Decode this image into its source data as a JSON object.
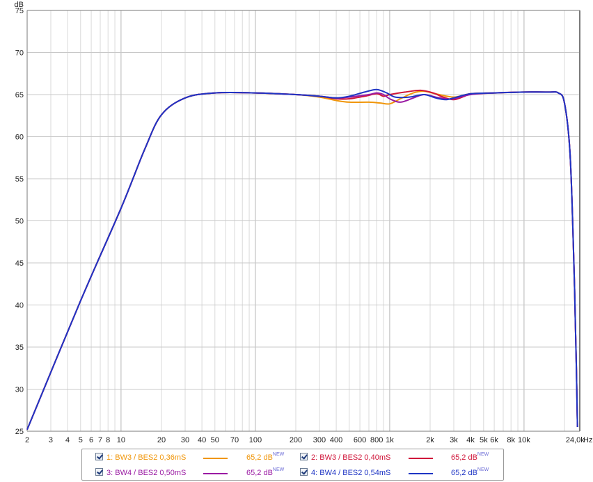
{
  "chart_data": {
    "type": "line",
    "y_unit": "dB",
    "x_unit": "Hz",
    "x_scale": "log",
    "xlim": [
      2,
      26000
    ],
    "ylim": [
      25,
      75
    ],
    "y_ticks": [
      25,
      30,
      35,
      40,
      45,
      50,
      55,
      60,
      65,
      70,
      75
    ],
    "x_ticks": [
      {
        "v": 2,
        "label": "2"
      },
      {
        "v": 3,
        "label": "3"
      },
      {
        "v": 4,
        "label": "4"
      },
      {
        "v": 5,
        "label": "5"
      },
      {
        "v": 6,
        "label": "6"
      },
      {
        "v": 7,
        "label": "7"
      },
      {
        "v": 8,
        "label": "8"
      },
      {
        "v": 10,
        "label": "10"
      },
      {
        "v": 20,
        "label": "20"
      },
      {
        "v": 30,
        "label": "30"
      },
      {
        "v": 40,
        "label": "40"
      },
      {
        "v": 50,
        "label": "50"
      },
      {
        "v": 70,
        "label": "70"
      },
      {
        "v": 100,
        "label": "100"
      },
      {
        "v": 200,
        "label": "200"
      },
      {
        "v": 300,
        "label": "300"
      },
      {
        "v": 400,
        "label": "400"
      },
      {
        "v": 600,
        "label": "600"
      },
      {
        "v": 800,
        "label": "800"
      },
      {
        "v": 1000,
        "label": "1k"
      },
      {
        "v": 2000,
        "label": "2k"
      },
      {
        "v": 3000,
        "label": "3k"
      },
      {
        "v": 4000,
        "label": "4k"
      },
      {
        "v": 5000,
        "label": "5k"
      },
      {
        "v": 6000,
        "label": "6k"
      },
      {
        "v": 8000,
        "label": "8k"
      },
      {
        "v": 10000,
        "label": "10k"
      },
      {
        "v": 24000,
        "label": "24,0k"
      }
    ],
    "grid": true,
    "legend_position": "bottom",
    "series": [
      {
        "name": "1: BW3 / BES2 0,36mS",
        "color": "#f0960a",
        "readout": "65,2 dB",
        "points": [
          [
            2,
            25.2
          ],
          [
            5,
            40.5
          ],
          [
            10,
            51.5
          ],
          [
            15,
            58.5
          ],
          [
            20,
            62.6
          ],
          [
            30,
            64.6
          ],
          [
            50,
            65.2
          ],
          [
            100,
            65.2
          ],
          [
            200,
            65.0
          ],
          [
            300,
            64.7
          ],
          [
            400,
            64.3
          ],
          [
            500,
            64.1
          ],
          [
            700,
            64.1
          ],
          [
            850,
            64.0
          ],
          [
            1000,
            63.9
          ],
          [
            1200,
            64.5
          ],
          [
            1500,
            65.2
          ],
          [
            1800,
            65.4
          ],
          [
            2200,
            65.1
          ],
          [
            3000,
            64.7
          ],
          [
            4000,
            65.1
          ],
          [
            6000,
            65.2
          ],
          [
            10000,
            65.3
          ],
          [
            15000,
            65.3
          ],
          [
            18000,
            65.2
          ],
          [
            20000,
            64.0
          ],
          [
            22000,
            58.0
          ],
          [
            23500,
            45.0
          ],
          [
            24500,
            33.0
          ],
          [
            25000,
            25.5
          ]
        ]
      },
      {
        "name": "2: BW3 / BES2 0,40mS",
        "color": "#d0163a",
        "readout": "65,2 dB",
        "points": [
          [
            2,
            25.2
          ],
          [
            5,
            40.5
          ],
          [
            10,
            51.5
          ],
          [
            15,
            58.5
          ],
          [
            20,
            62.6
          ],
          [
            30,
            64.6
          ],
          [
            50,
            65.2
          ],
          [
            100,
            65.2
          ],
          [
            200,
            65.0
          ],
          [
            300,
            64.8
          ],
          [
            400,
            64.5
          ],
          [
            500,
            64.5
          ],
          [
            650,
            64.8
          ],
          [
            800,
            65.1
          ],
          [
            900,
            64.8
          ],
          [
            1000,
            65.0
          ],
          [
            1300,
            65.3
          ],
          [
            1700,
            65.5
          ],
          [
            2100,
            65.2
          ],
          [
            2500,
            64.7
          ],
          [
            3000,
            64.4
          ],
          [
            3600,
            64.8
          ],
          [
            4000,
            65.1
          ],
          [
            6000,
            65.2
          ],
          [
            10000,
            65.3
          ],
          [
            15000,
            65.3
          ],
          [
            18000,
            65.2
          ],
          [
            20000,
            64.0
          ],
          [
            22000,
            58.0
          ],
          [
            23500,
            45.0
          ],
          [
            24500,
            33.0
          ],
          [
            25000,
            25.5
          ]
        ]
      },
      {
        "name": "3: BW4 / BES2 0,50mS",
        "color": "#9a1aa3",
        "readout": "65,2 dB",
        "points": [
          [
            2,
            25.2
          ],
          [
            5,
            40.5
          ],
          [
            10,
            51.5
          ],
          [
            15,
            58.5
          ],
          [
            20,
            62.6
          ],
          [
            30,
            64.6
          ],
          [
            50,
            65.2
          ],
          [
            100,
            65.2
          ],
          [
            200,
            65.0
          ],
          [
            300,
            64.8
          ],
          [
            400,
            64.6
          ],
          [
            500,
            64.7
          ],
          [
            700,
            65.0
          ],
          [
            800,
            65.2
          ],
          [
            900,
            65.0
          ],
          [
            1000,
            64.5
          ],
          [
            1200,
            64.1
          ],
          [
            1500,
            64.6
          ],
          [
            1800,
            65.0
          ],
          [
            2200,
            64.7
          ],
          [
            2600,
            64.5
          ],
          [
            3000,
            64.5
          ],
          [
            4000,
            65.0
          ],
          [
            6000,
            65.2
          ],
          [
            10000,
            65.3
          ],
          [
            15000,
            65.3
          ],
          [
            18000,
            65.2
          ],
          [
            20000,
            64.0
          ],
          [
            22000,
            58.0
          ],
          [
            23500,
            45.0
          ],
          [
            24500,
            33.0
          ],
          [
            25000,
            25.5
          ]
        ]
      },
      {
        "name": "4: BW4 / BES2 0,54mS",
        "color": "#1f35c4",
        "readout": "65,2 dB",
        "points": [
          [
            2,
            25.2
          ],
          [
            5,
            40.5
          ],
          [
            10,
            51.5
          ],
          [
            15,
            58.5
          ],
          [
            20,
            62.6
          ],
          [
            30,
            64.6
          ],
          [
            50,
            65.2
          ],
          [
            100,
            65.2
          ],
          [
            200,
            65.0
          ],
          [
            300,
            64.8
          ],
          [
            400,
            64.6
          ],
          [
            500,
            64.8
          ],
          [
            650,
            65.3
          ],
          [
            800,
            65.6
          ],
          [
            950,
            65.2
          ],
          [
            1100,
            64.7
          ],
          [
            1400,
            64.7
          ],
          [
            1800,
            65.0
          ],
          [
            2200,
            64.6
          ],
          [
            2600,
            64.4
          ],
          [
            3000,
            64.6
          ],
          [
            4000,
            65.1
          ],
          [
            6000,
            65.2
          ],
          [
            10000,
            65.3
          ],
          [
            15000,
            65.3
          ],
          [
            18000,
            65.2
          ],
          [
            20000,
            64.0
          ],
          [
            22000,
            58.0
          ],
          [
            23500,
            45.0
          ],
          [
            24500,
            33.0
          ],
          [
            25000,
            25.5
          ]
        ]
      }
    ]
  },
  "legend": {
    "new_badge": "NEW"
  }
}
